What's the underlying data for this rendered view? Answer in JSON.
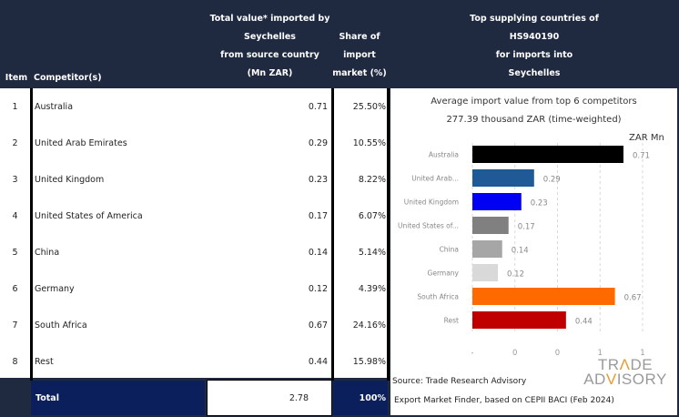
{
  "header": {
    "item": "Item",
    "competitor": "Competitor(s)",
    "total_value_lines": [
      "Total value* imported by",
      "Seychelles",
      "from source country",
      "(Mn ZAR)"
    ],
    "share_lines": [
      "Share of",
      "import",
      "market (%)"
    ],
    "top_lines": [
      "Top supplying countries of",
      "HS940190",
      "for imports into",
      "Seychelles"
    ]
  },
  "rows": [
    {
      "item": "1",
      "competitor": "Australia",
      "value": "0.71",
      "share": "25.50%"
    },
    {
      "item": "2",
      "competitor": "United Arab Emirates",
      "value": "0.29",
      "share": "10.55%"
    },
    {
      "item": "3",
      "competitor": "United Kingdom",
      "value": "0.23",
      "share": "8.22%"
    },
    {
      "item": "4",
      "competitor": "United States of America",
      "value": "0.17",
      "share": "6.07%"
    },
    {
      "item": "5",
      "competitor": "China",
      "value": "0.14",
      "share": "5.14%"
    },
    {
      "item": "6",
      "competitor": "Germany",
      "value": "0.12",
      "share": "4.39%"
    },
    {
      "item": "7",
      "competitor": "South Africa",
      "value": "0.67",
      "share": "24.16%"
    },
    {
      "item": "8",
      "competitor": "Rest",
      "value": "0.44",
      "share": "15.98%"
    }
  ],
  "total": {
    "label": "Total",
    "value": "2.78",
    "share": "100%"
  },
  "chart_data": {
    "type": "bar",
    "orientation": "horizontal",
    "title": "Average import value from top 6 competitors",
    "subtitle": "277.39 thousand ZAR (time-weighted)",
    "unit_label": "ZAR Mn",
    "categories": [
      "Australia",
      "United Arab...",
      "United Kingdom",
      "United States of...",
      "China",
      "Germany",
      "South Africa",
      "Rest"
    ],
    "values": [
      0.71,
      0.29,
      0.23,
      0.17,
      0.14,
      0.12,
      0.67,
      0.44
    ],
    "value_labels": [
      "0.71",
      "0.29",
      "0.23",
      "0.17",
      "0.14",
      "0.12",
      "0.67",
      "0.44"
    ],
    "colors": [
      "#000000",
      "#1f5a96",
      "#0000f5",
      "#808080",
      "#a6a6a6",
      "#d9d9d9",
      "#ff6a00",
      "#c00000"
    ],
    "xlim": [
      0,
      0.8
    ],
    "x_ticks": [
      0,
      0.2,
      0.4,
      0.6,
      0.8
    ],
    "x_tick_labels": [
      "-",
      "0",
      "0",
      "1",
      "1"
    ],
    "grid": "vertical-dashed",
    "legend": "none"
  },
  "source": {
    "line1": "Source: Trade Research Advisory",
    "line2": "Export Market Finder, based on CEPII BACI (Feb 2024)"
  },
  "logo": {
    "line1_a": "TR",
    "line1_b": "Λ",
    "line1_c": "DE",
    "line2_a": "AD",
    "line2_b": "V",
    "line2_c": "ISORY"
  }
}
